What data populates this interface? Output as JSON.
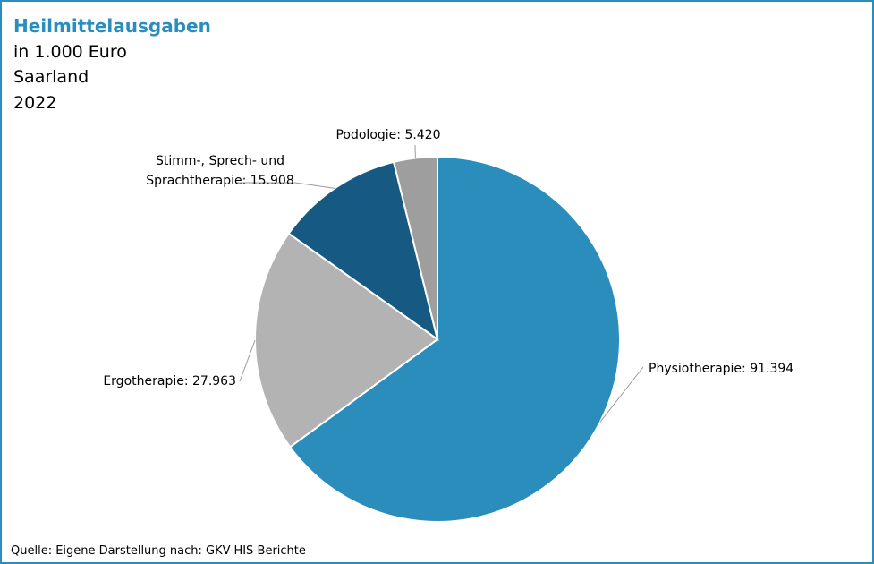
{
  "chart_data": {
    "type": "pie",
    "title": "Heilmittelausgaben",
    "subtitle": [
      "in 1.000 Euro",
      "Saarland",
      "2022"
    ],
    "source": "Quelle: Eigene Darstellung nach: GKV-HIS-Berichte",
    "start_angle_deg": 0,
    "direction": "clockwise",
    "slices": [
      {
        "key": "physio",
        "label": "Physiotherapie: 91.394",
        "value": 91394,
        "color": "#2a8dbc"
      },
      {
        "key": "ergo",
        "label": "Ergotherapie: 27.963",
        "value": 27963,
        "color": "#b3b3b3"
      },
      {
        "key": "stimm",
        "label_lines": [
          "Stimm-, Sprech- und",
          "Sprachtherapie: 15.908"
        ],
        "value": 15908,
        "color": "#165a84"
      },
      {
        "key": "podo",
        "label": "Podologie: 5.420",
        "value": 5420,
        "color": "#9e9e9e"
      }
    ]
  }
}
